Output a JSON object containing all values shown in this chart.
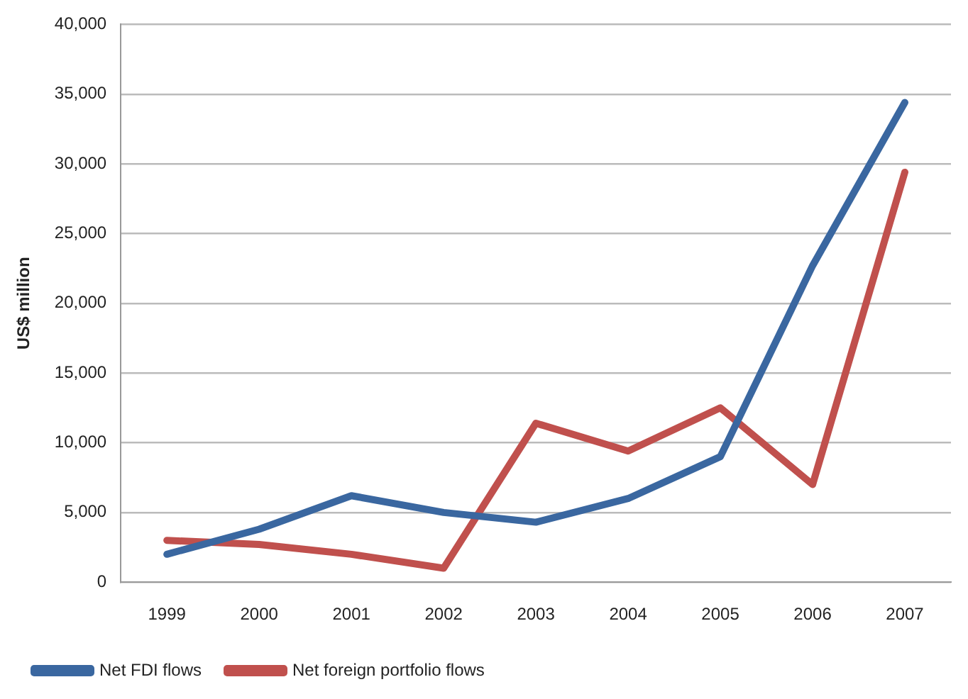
{
  "chart_data": {
    "type": "line",
    "ylabel": "US$ million",
    "categories": [
      "1999",
      "2000",
      "2001",
      "2002",
      "2003",
      "2004",
      "2005",
      "2006",
      "2007"
    ],
    "series": [
      {
        "name": "Net FDI flows",
        "color": "#3a67a0",
        "values": [
          2000,
          3800,
          6200,
          5000,
          4300,
          6000,
          9000,
          22700,
          34400
        ]
      },
      {
        "name": "Net foreign portfolio flows",
        "color": "#c0504d",
        "values": [
          3000,
          2700,
          2000,
          1000,
          11400,
          9400,
          12500,
          7000,
          29400
        ]
      }
    ],
    "ylim": [
      0,
      40000
    ],
    "yticks": [
      {
        "value": 0,
        "label": "0"
      },
      {
        "value": 5000,
        "label": "5,000"
      },
      {
        "value": 10000,
        "label": "10,000"
      },
      {
        "value": 15000,
        "label": "15,000"
      },
      {
        "value": 20000,
        "label": "20,000"
      },
      {
        "value": 25000,
        "label": "25,000"
      },
      {
        "value": 30000,
        "label": "30,000"
      },
      {
        "value": 35000,
        "label": "35,000"
      },
      {
        "value": 40000,
        "label": "40,000"
      }
    ],
    "grid": "y",
    "legend": "bottom",
    "marker": "none",
    "line_style": "solid"
  }
}
